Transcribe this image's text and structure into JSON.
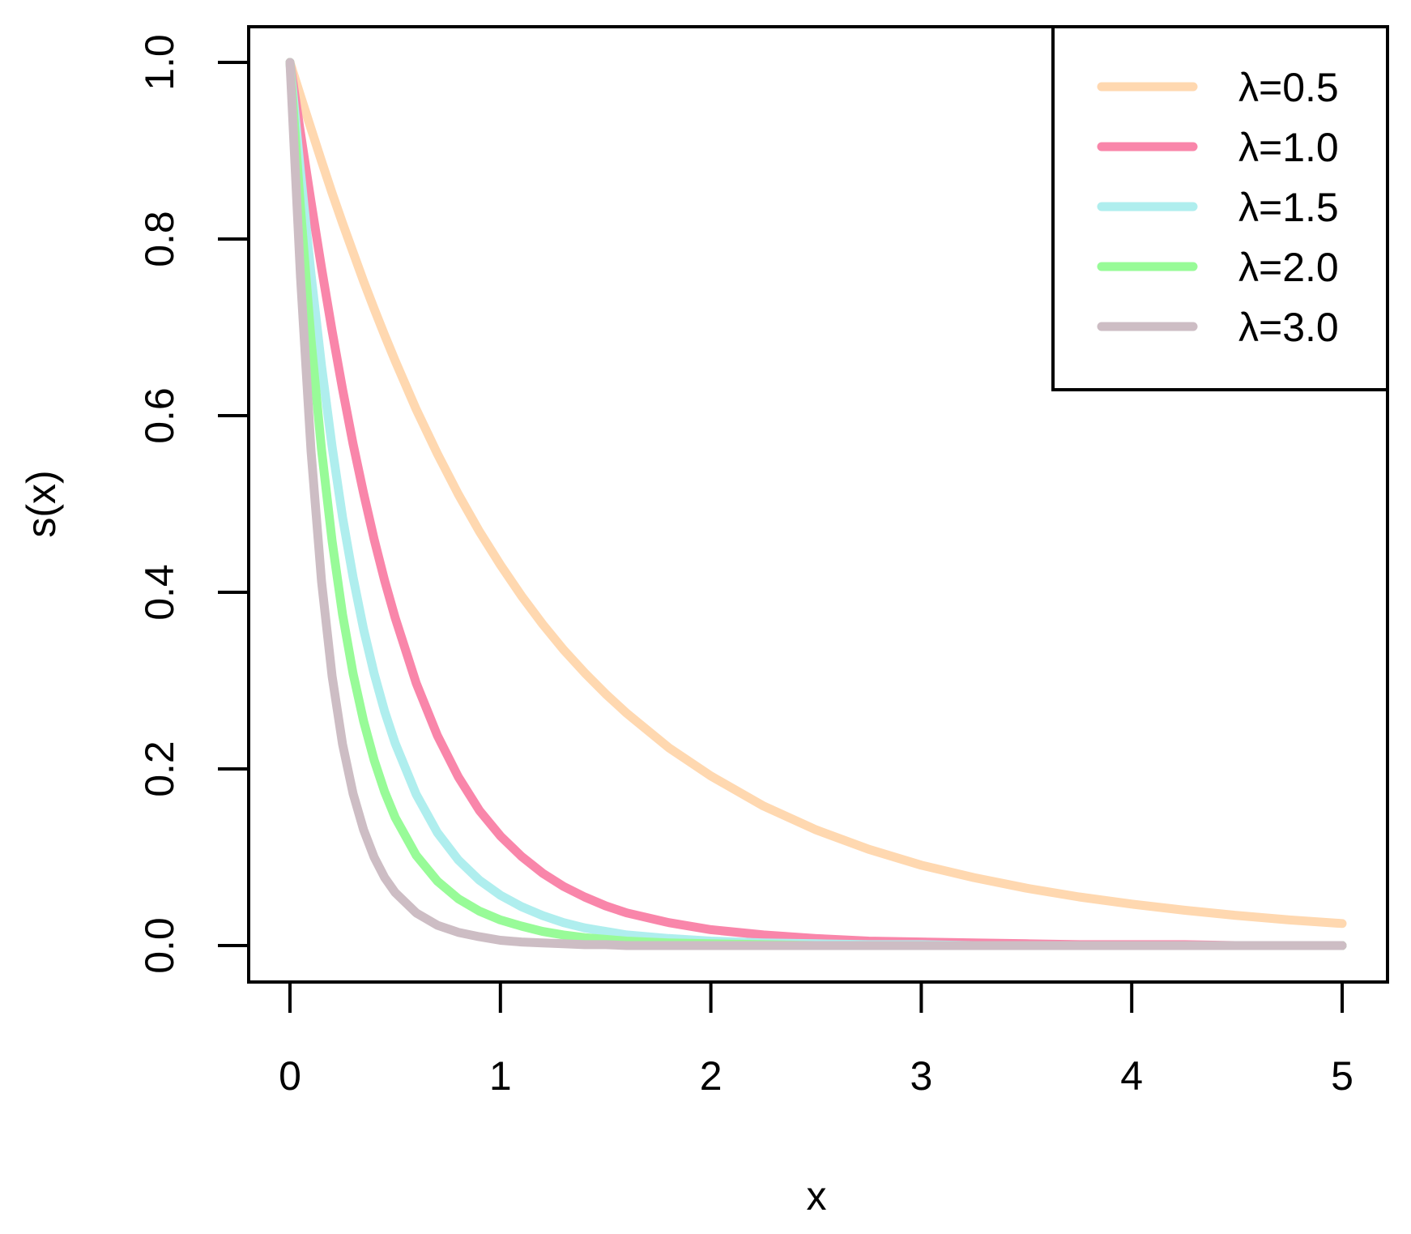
{
  "chart_data": {
    "type": "line",
    "title": "",
    "xlabel": "x",
    "ylabel": "s(x)",
    "xlim": [
      0,
      5
    ],
    "ylim": [
      0,
      1
    ],
    "x_ticks": [
      "0",
      "1",
      "2",
      "3",
      "4",
      "5"
    ],
    "y_ticks": [
      "0.0",
      "0.2",
      "0.4",
      "0.6",
      "0.8",
      "1.0"
    ],
    "grid": false,
    "legend_position": "top-right",
    "x": [
      0,
      0.05,
      0.1,
      0.15,
      0.2,
      0.25,
      0.3,
      0.35,
      0.4,
      0.45,
      0.5,
      0.6,
      0.7,
      0.8,
      0.9,
      1.0,
      1.1,
      1.2,
      1.3,
      1.4,
      1.5,
      1.6,
      1.8,
      2.0,
      2.25,
      2.5,
      2.75,
      3.0,
      3.25,
      3.5,
      3.75,
      4.0,
      4.25,
      4.5,
      4.75,
      5.0
    ],
    "series": [
      {
        "name": "λ=0.5",
        "color": "#FFD8B0",
        "values": [
          1.0,
          0.962,
          0.925,
          0.888,
          0.852,
          0.818,
          0.785,
          0.752,
          0.721,
          0.691,
          0.662,
          0.607,
          0.557,
          0.511,
          0.469,
          0.431,
          0.396,
          0.364,
          0.335,
          0.309,
          0.285,
          0.263,
          0.224,
          0.192,
          0.158,
          0.131,
          0.109,
          0.091,
          0.077,
          0.065,
          0.055,
          0.047,
          0.04,
          0.034,
          0.029,
          0.025
        ]
      },
      {
        "name": "λ=1.0",
        "color": "#F986AA",
        "values": [
          1.0,
          0.92,
          0.842,
          0.767,
          0.696,
          0.63,
          0.568,
          0.512,
          0.46,
          0.413,
          0.371,
          0.297,
          0.238,
          0.191,
          0.153,
          0.124,
          0.101,
          0.082,
          0.067,
          0.055,
          0.045,
          0.037,
          0.026,
          0.018,
          0.012,
          0.008,
          0.005,
          0.004,
          0.003,
          0.002,
          0.001,
          0.001,
          0.001,
          0.0,
          0.0,
          0.0
        ]
      },
      {
        "name": "λ=1.5",
        "color": "#AFEEEE",
        "values": [
          1.0,
          0.876,
          0.76,
          0.656,
          0.565,
          0.485,
          0.417,
          0.358,
          0.308,
          0.265,
          0.229,
          0.171,
          0.128,
          0.097,
          0.074,
          0.057,
          0.044,
          0.034,
          0.026,
          0.02,
          0.016,
          0.012,
          0.008,
          0.005,
          0.003,
          0.002,
          0.001,
          0.001,
          0.0,
          0.0,
          0.0,
          0.0,
          0.0,
          0.0,
          0.0,
          0.0
        ]
      },
      {
        "name": "λ=2.0",
        "color": "#98FB98",
        "values": [
          1.0,
          0.835,
          0.686,
          0.561,
          0.458,
          0.375,
          0.308,
          0.254,
          0.21,
          0.174,
          0.145,
          0.102,
          0.073,
          0.053,
          0.039,
          0.029,
          0.022,
          0.016,
          0.012,
          0.009,
          0.007,
          0.005,
          0.003,
          0.002,
          0.001,
          0.0,
          0.0,
          0.0,
          0.0,
          0.0,
          0.0,
          0.0,
          0.0,
          0.0,
          0.0,
          0.0
        ]
      },
      {
        "name": "λ=3.0",
        "color": "#CDBDC4",
        "values": [
          1.0,
          0.757,
          0.56,
          0.412,
          0.305,
          0.228,
          0.172,
          0.131,
          0.1,
          0.077,
          0.06,
          0.037,
          0.023,
          0.015,
          0.01,
          0.006,
          0.004,
          0.003,
          0.002,
          0.001,
          0.001,
          0.0,
          0.0,
          0.0,
          0.0,
          0.0,
          0.0,
          0.0,
          0.0,
          0.0,
          0.0,
          0.0,
          0.0,
          0.0,
          0.0,
          0.0
        ]
      }
    ]
  }
}
